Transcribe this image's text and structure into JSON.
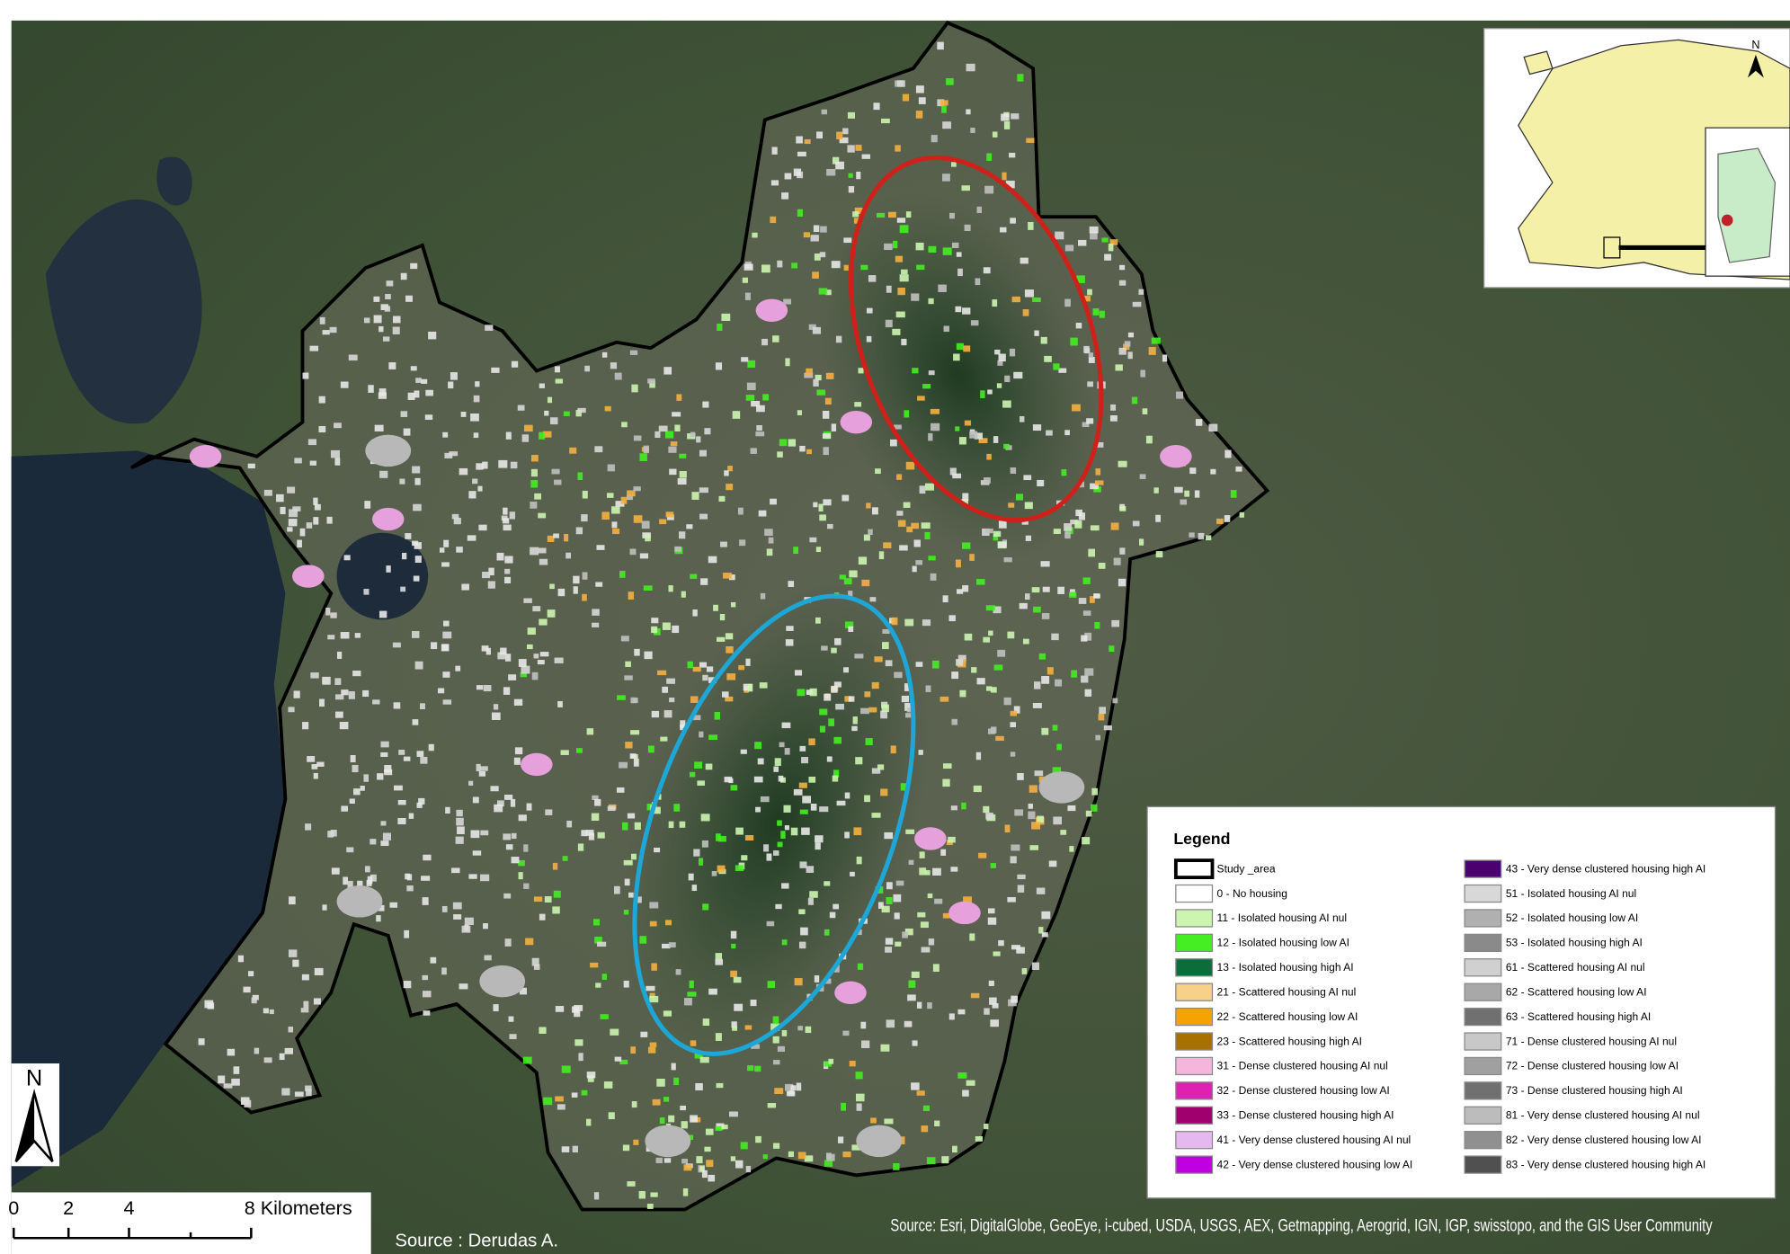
{
  "map": {
    "legend": {
      "title": "Legend",
      "items": [
        {
          "label": "Study _area",
          "color": "#ffffff"
        },
        {
          "label": "0 - No housing",
          "color": "#ffffff"
        },
        {
          "label": "11 - Isolated housing AI nul",
          "color": "#ccf5b0"
        },
        {
          "label": "12 - Isolated housing low AI",
          "color": "#44ee22"
        },
        {
          "label": "13 - Isolated housing high AI",
          "color": "#0b6e3a"
        },
        {
          "label": "21 - Scattered housing AI nul",
          "color": "#f7d08a"
        },
        {
          "label": "22 - Scattered housing low AI",
          "color": "#f5a300"
        },
        {
          "label": "23 - Scattered housing high AI",
          "color": "#a87000"
        },
        {
          "label": "31 - Dense clustered housing AI nul",
          "color": "#f5b6dc"
        },
        {
          "label": "32 - Dense clustered housing low AI",
          "color": "#e020b0"
        },
        {
          "label": "33 - Dense clustered housing high AI",
          "color": "#a0006e"
        },
        {
          "label": "41 - Very dense clustered housing AI nul",
          "color": "#e6b8f0"
        },
        {
          "label": "42 - Very dense clustered housing low AI",
          "color": "#c000e0"
        },
        {
          "label": "43 - Very dense clustered housing high AI",
          "color": "#4b0070"
        },
        {
          "label": "51 - Isolated housing AI nul",
          "color": "#d8d8d8"
        },
        {
          "label": "52 - Isolated housing low AI",
          "color": "#b0b0b0"
        },
        {
          "label": "53 - Isolated housing high AI",
          "color": "#8a8a8a"
        },
        {
          "label": "61 - Scattered housing AI nul",
          "color": "#d0d0d0"
        },
        {
          "label": "62 - Scattered housing low AI",
          "color": "#a8a8a8"
        },
        {
          "label": "63 - Scattered housing high AI",
          "color": "#707070"
        },
        {
          "label": "71 - Dense clustered housing AI nul",
          "color": "#c8c8c8"
        },
        {
          "label": "72 - Dense clustered housing low AI",
          "color": "#a0a0a0"
        },
        {
          "label": "73 - Dense clustered housing high AI",
          "color": "#707070"
        },
        {
          "label": "81 - Very dense clustered housing AI nul",
          "color": "#bcbcbc"
        },
        {
          "label": "82 - Very dense clustered housing low AI",
          "color": "#909090"
        },
        {
          "label": "83 - Very dense clustered housing high AI",
          "color": "#505050"
        }
      ]
    },
    "scale_bar": {
      "labels": [
        "0",
        "2",
        "4",
        "8 Kilometers"
      ]
    },
    "north_label": "N",
    "inset_north_label": "N",
    "source_author": "Source : Derudas A.",
    "source_basemap": "Source: Esri, DigitalGlobe, GeoEye, i-cubed, USDA, USGS, AEX, Getmapping, Aerogrid, IGN, IGP, swisstopo, and the GIS User Community"
  }
}
